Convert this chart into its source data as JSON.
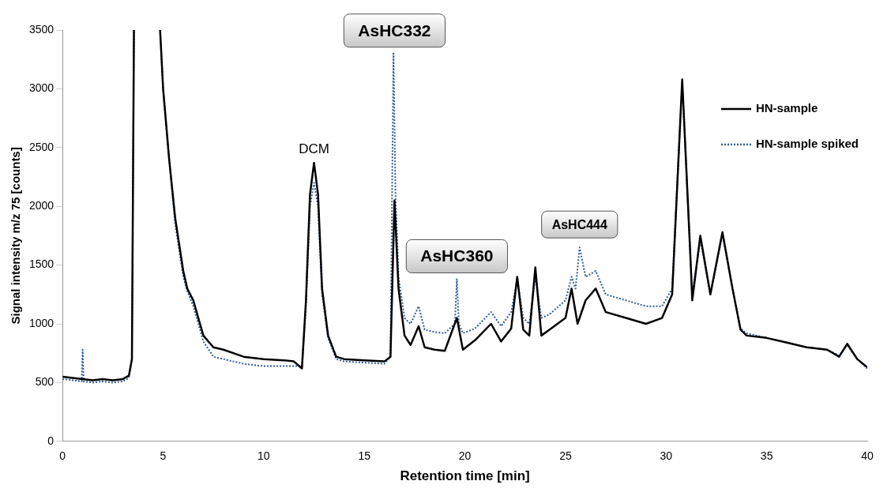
{
  "chart_data": {
    "type": "line",
    "xlabel": "Retention time [min]",
    "ylabel": "Signal intensity m/z 75 [counts]",
    "xlim": [
      0,
      40
    ],
    "xticks": [
      0,
      5,
      10,
      15,
      20,
      25,
      30,
      35,
      40
    ],
    "ylim": [
      0,
      3500
    ],
    "yticks": [
      0,
      500,
      1000,
      1500,
      2000,
      2500,
      3000,
      3500
    ],
    "grid": false,
    "legend": "top right",
    "marker": "none",
    "series": [
      {
        "name": "HN-sample",
        "color": "#000000",
        "line_style": "solid",
        "x": [
          0,
          0.5,
          1,
          1.5,
          2,
          2.5,
          3,
          3.3,
          3.45,
          3.55,
          4,
          4.85,
          5,
          5.3,
          5.6,
          6,
          6.2,
          6.5,
          7,
          7.5,
          8,
          9,
          10,
          11,
          11.5,
          11.9,
          12.1,
          12.3,
          12.5,
          12.7,
          12.9,
          13.2,
          13.6,
          14,
          15,
          16,
          16.3,
          16.5,
          16.7,
          17,
          17.3,
          17.7,
          18,
          18.5,
          19,
          19.6,
          19.9,
          20.5,
          21.3,
          21.8,
          22.3,
          22.6,
          22.9,
          23.2,
          23.5,
          23.8,
          24.2,
          25,
          25.3,
          25.6,
          26,
          26.5,
          27,
          28,
          29,
          29.8,
          30.3,
          30.8,
          31.2,
          31.3,
          31.7,
          32.2,
          32.8,
          33.3,
          33.7,
          34,
          35,
          36,
          37,
          38,
          38.6,
          39,
          39.5,
          40
        ],
        "values": [
          550,
          540,
          530,
          520,
          530,
          520,
          530,
          560,
          700,
          3500,
          null,
          3500,
          3000,
          2400,
          1900,
          1450,
          1300,
          1200,
          900,
          800,
          780,
          720,
          700,
          690,
          680,
          620,
          1200,
          2100,
          2370,
          2100,
          1300,
          900,
          720,
          700,
          690,
          680,
          720,
          2050,
          1300,
          900,
          820,
          980,
          800,
          780,
          770,
          1050,
          780,
          860,
          1000,
          850,
          960,
          1400,
          950,
          900,
          1480,
          900,
          950,
          1050,
          1300,
          1000,
          1200,
          1300,
          1100,
          1050,
          1000,
          1050,
          1250,
          3080,
          1600,
          1200,
          1750,
          1250,
          1780,
          1300,
          950,
          900,
          880,
          840,
          800,
          780,
          720,
          830,
          700,
          630
        ]
      },
      {
        "name": "HN-sample spiked",
        "color": "#2e5c9a",
        "line_style": "dotted",
        "x": [
          0,
          0.5,
          0.95,
          1,
          1.05,
          1.5,
          2,
          2.5,
          3,
          3.3,
          3.45,
          3.55,
          4,
          4.85,
          5,
          5.3,
          5.6,
          6,
          6.2,
          6.5,
          7,
          7.5,
          8,
          9,
          10,
          11,
          11.5,
          11.9,
          12.1,
          12.3,
          12.5,
          12.7,
          12.9,
          13.2,
          13.6,
          14,
          15,
          16,
          16.3,
          16.45,
          16.55,
          16.7,
          17,
          17.3,
          17.7,
          18,
          18.5,
          19,
          19.5,
          19.6,
          19.7,
          19.9,
          20.5,
          21.3,
          21.8,
          22.3,
          22.6,
          22.9,
          23.2,
          23.5,
          23.8,
          24.2,
          25,
          25.3,
          25.5,
          25.7,
          26,
          26.5,
          27,
          28,
          29,
          29.8,
          30.3,
          30.8,
          31.2,
          31.3,
          31.7,
          32.2,
          32.8,
          33.3,
          33.7,
          34,
          35,
          36,
          37,
          38,
          38.6,
          39,
          39.5,
          40
        ],
        "values": [
          530,
          520,
          510,
          780,
          510,
          500,
          510,
          500,
          510,
          540,
          700,
          3500,
          null,
          3500,
          3000,
          2400,
          1850,
          1400,
          1280,
          1150,
          850,
          720,
          700,
          660,
          640,
          640,
          640,
          640,
          1150,
          2000,
          2200,
          2000,
          1250,
          880,
          700,
          680,
          670,
          660,
          720,
          3300,
          2100,
          1400,
          1050,
          1000,
          1150,
          950,
          930,
          920,
          1000,
          1380,
          1000,
          920,
          960,
          1100,
          980,
          1100,
          1380,
          1050,
          1000,
          1400,
          1050,
          1080,
          1200,
          1400,
          1300,
          1650,
          1400,
          1450,
          1250,
          1200,
          1150,
          1150,
          1300,
          3050,
          1600,
          1250,
          1720,
          1250,
          1760,
          1300,
          960,
          920,
          880,
          840,
          800,
          780,
          730,
          820,
          700,
          620
        ]
      }
    ],
    "annotations": [
      {
        "text": "DCM",
        "x": 12.5,
        "y": 2370
      },
      {
        "text": "AsHC332",
        "x": 16.5,
        "y": 3300
      },
      {
        "text": "AsHC360",
        "x": 19.6,
        "y": 1380
      },
      {
        "text": "AsHC444",
        "x": 25.7,
        "y": 1650
      }
    ]
  }
}
